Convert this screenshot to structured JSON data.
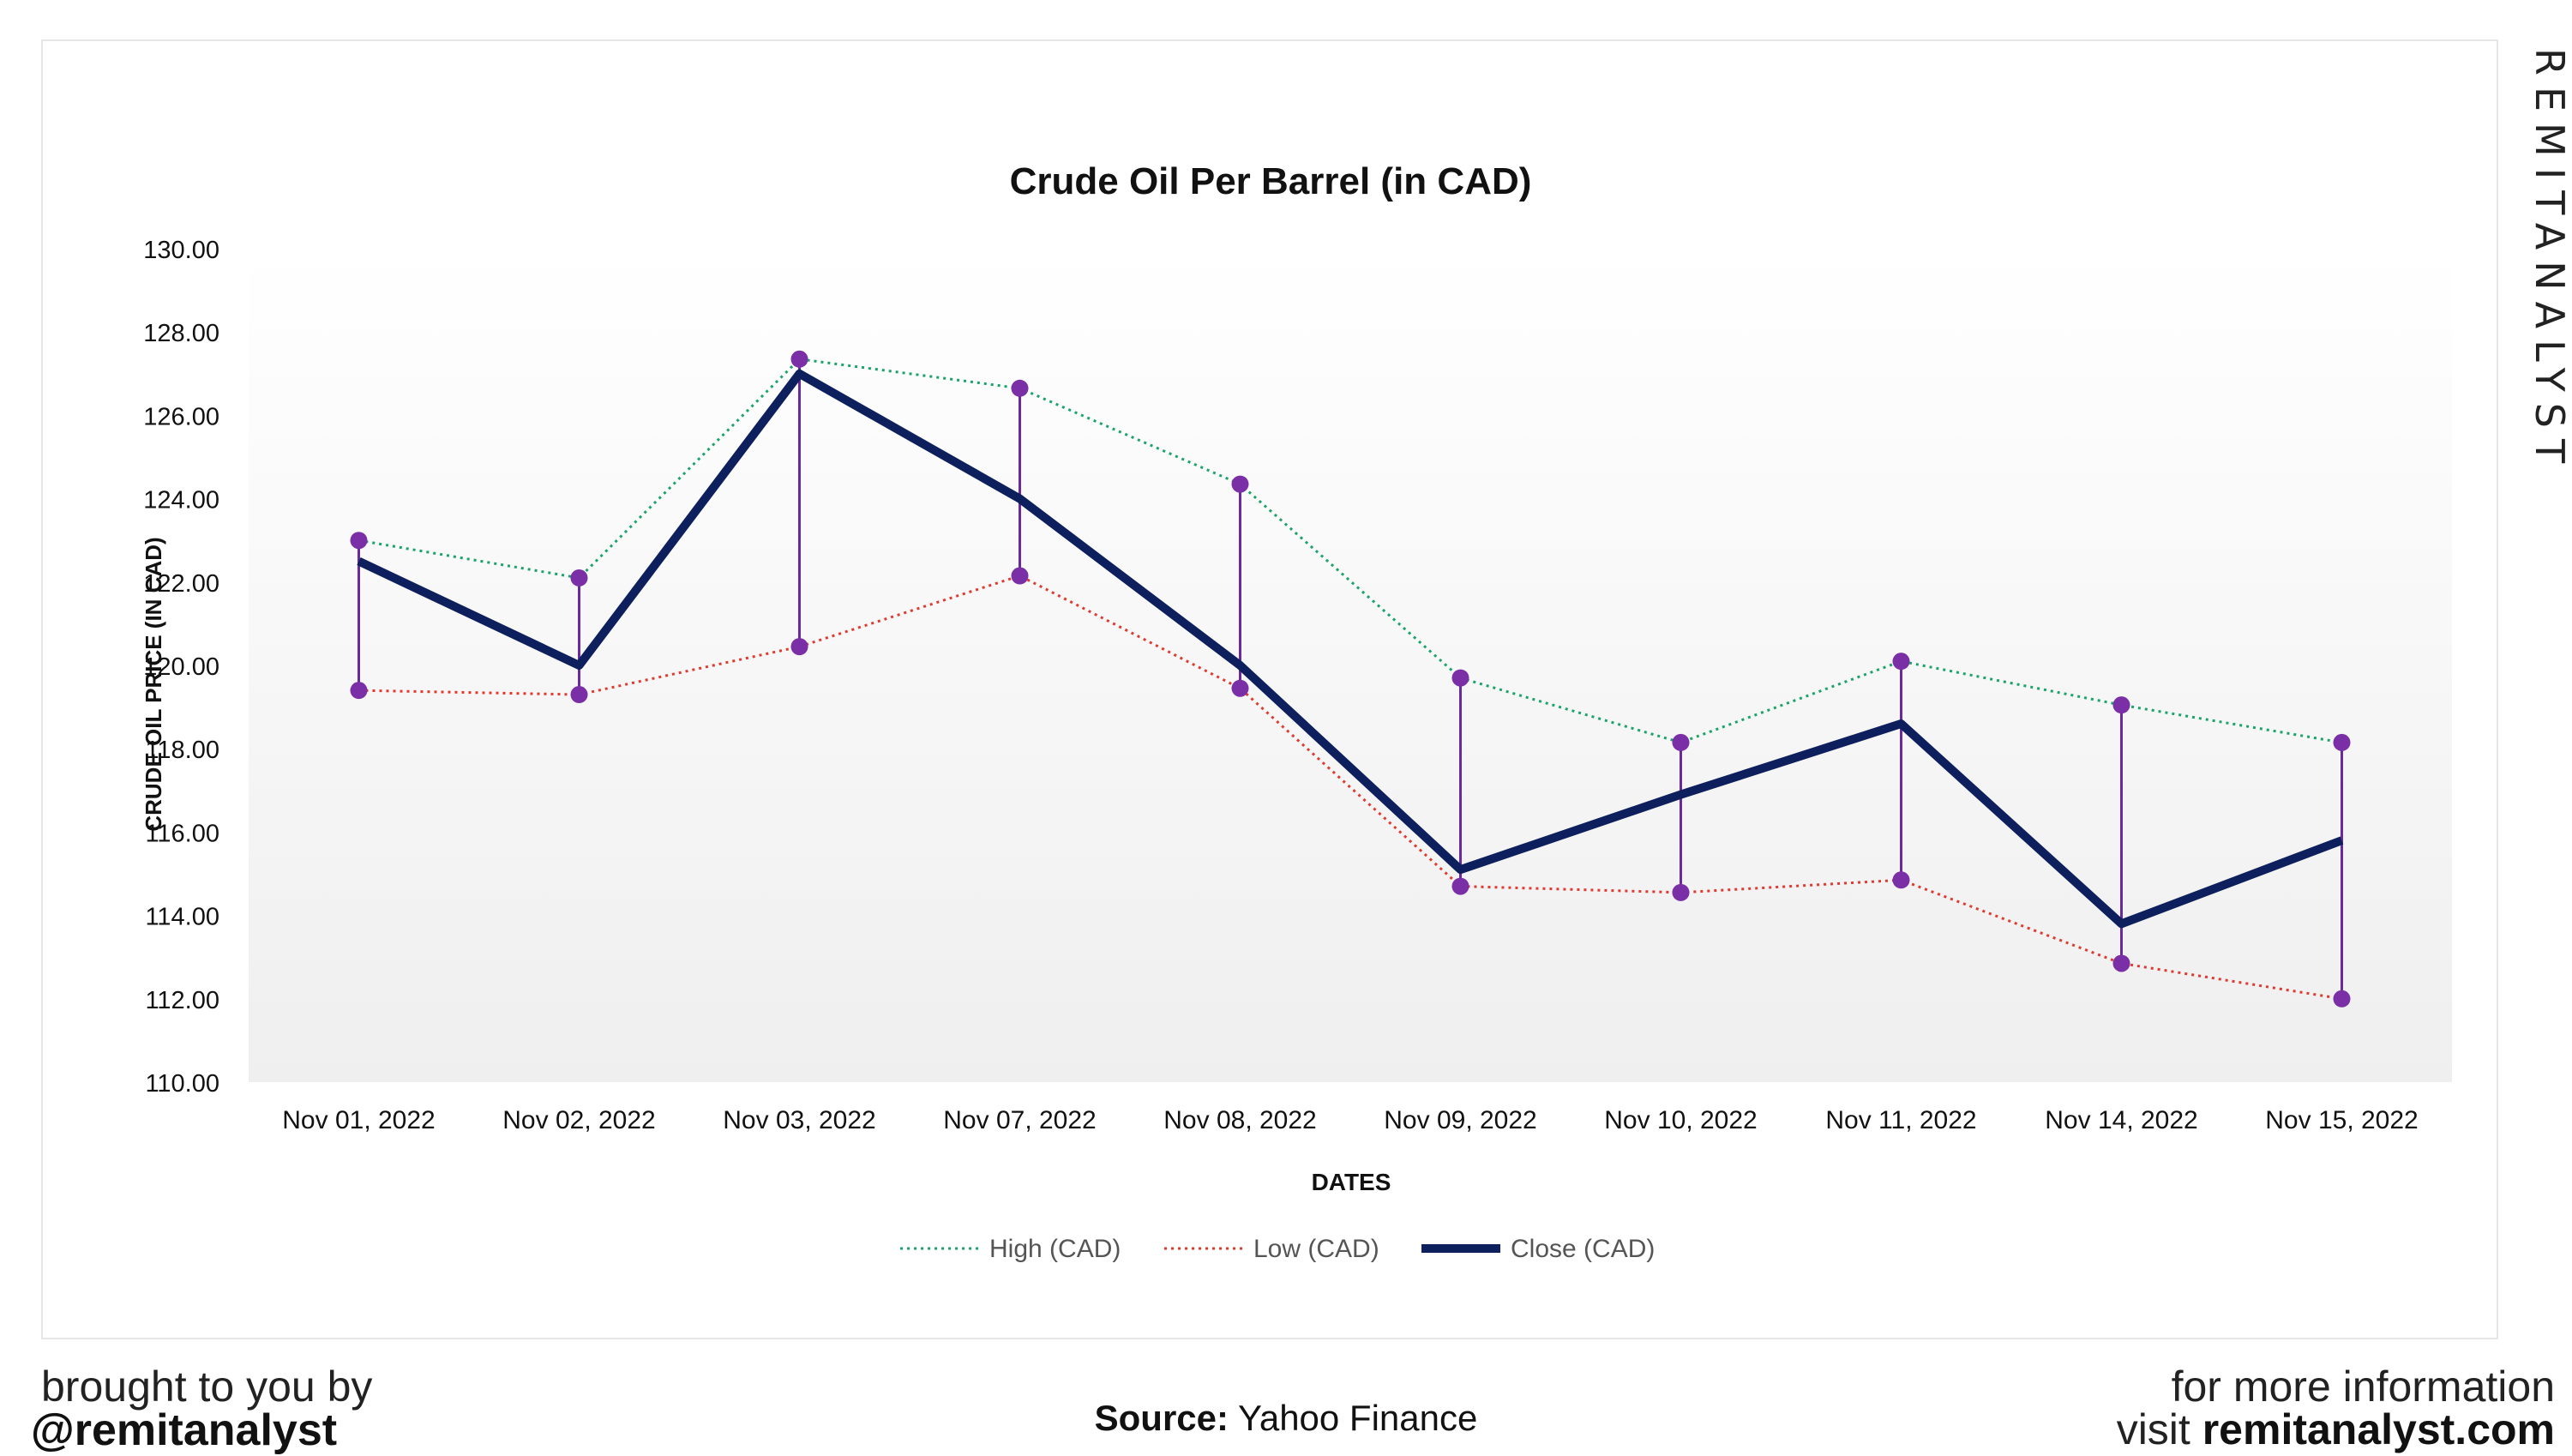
{
  "brand_vertical": "REMITANALYST",
  "footer": {
    "left_line1": "brought to you by",
    "left_line2": "@remitanalyst",
    "source_label": "Source:",
    "source_value": "Yahoo Finance",
    "right_line1": "for more information",
    "right_line2_prefix": "visit",
    "right_line2_site": "remitanalyst.com"
  },
  "colors": {
    "high": "#1aa36b",
    "low": "#e03a2f",
    "close": "#0d1f5c",
    "marker": "#7b2fa6",
    "range_line": "#6a2a9c",
    "plot_top": "#ffffff",
    "plot_bottom": "#efefef"
  },
  "chart_data": {
    "type": "line",
    "title": "Crude Oil Per Barrel (in CAD)",
    "xlabel": "DATES",
    "ylabel": "CRUDE OIL PRICE (IN CAD)",
    "ylim": [
      110,
      130
    ],
    "yticks": [
      "110.00",
      "112.00",
      "114.00",
      "116.00",
      "118.00",
      "120.00",
      "122.00",
      "124.00",
      "126.00",
      "128.00",
      "130.00"
    ],
    "grid": false,
    "legend_position": "bottom",
    "categories": [
      "Nov 01, 2022",
      "Nov 02, 2022",
      "Nov 03, 2022",
      "Nov 07, 2022",
      "Nov 08, 2022",
      "Nov 09, 2022",
      "Nov 10, 2022",
      "Nov 11, 2022",
      "Nov 14, 2022",
      "Nov 15, 2022"
    ],
    "series": [
      {
        "name": "High (CAD)",
        "style": "dotted",
        "values": [
          123.0,
          122.1,
          127.35,
          126.65,
          124.35,
          119.7,
          118.15,
          120.1,
          119.05,
          118.15
        ]
      },
      {
        "name": "Low (CAD)",
        "style": "dotted",
        "values": [
          119.4,
          119.3,
          120.45,
          122.15,
          119.45,
          114.7,
          114.55,
          114.85,
          112.85,
          112.0
        ]
      },
      {
        "name": "Close (CAD)",
        "style": "solid",
        "values": [
          122.5,
          120.0,
          127.0,
          124.0,
          120.0,
          115.1,
          116.9,
          118.6,
          113.8,
          115.8
        ]
      }
    ]
  }
}
